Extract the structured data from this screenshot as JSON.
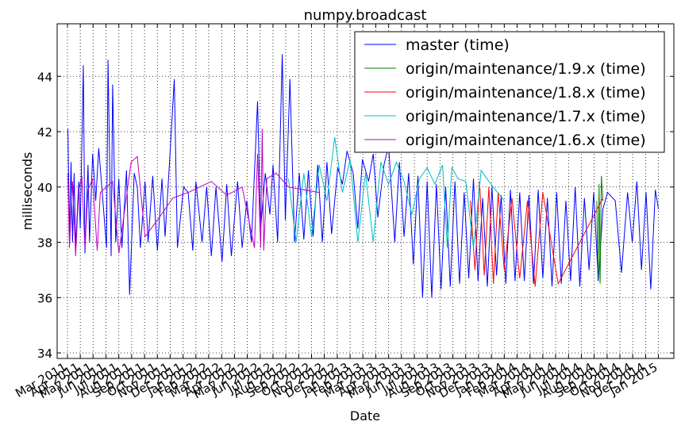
{
  "chart_data": {
    "type": "line",
    "title": "numpy.broadcast",
    "x_label": "Date",
    "y_label": "milliseconds",
    "xlim": [
      2011.1,
      2015.1
    ],
    "ylim": [
      33.8,
      45.9
    ],
    "grid": true,
    "legend": "upper right",
    "yticks": [
      34,
      36,
      38,
      40,
      42,
      44
    ],
    "xticks": [
      {
        "value": 2011.167,
        "label": "Mar 2011"
      },
      {
        "value": 2011.25,
        "label": "Apr 2011"
      },
      {
        "value": 2011.333,
        "label": "May 2011"
      },
      {
        "value": 2011.417,
        "label": "Jun 2011"
      },
      {
        "value": 2011.5,
        "label": "Jul 2011"
      },
      {
        "value": 2011.583,
        "label": "Aug 2011"
      },
      {
        "value": 2011.667,
        "label": "Sep 2011"
      },
      {
        "value": 2011.75,
        "label": "Oct 2011"
      },
      {
        "value": 2011.833,
        "label": "Nov 2011"
      },
      {
        "value": 2011.917,
        "label": "Dec 2011"
      },
      {
        "value": 2012.0,
        "label": "Jan 2012"
      },
      {
        "value": 2012.083,
        "label": "Feb 2012"
      },
      {
        "value": 2012.167,
        "label": "Mar 2012"
      },
      {
        "value": 2012.25,
        "label": "Apr 2012"
      },
      {
        "value": 2012.333,
        "label": "May 2012"
      },
      {
        "value": 2012.417,
        "label": "Jun 2012"
      },
      {
        "value": 2012.5,
        "label": "Jul 2012"
      },
      {
        "value": 2012.583,
        "label": "Aug 2012"
      },
      {
        "value": 2012.667,
        "label": "Sep 2012"
      },
      {
        "value": 2012.75,
        "label": "Oct 2012"
      },
      {
        "value": 2012.833,
        "label": "Nov 2012"
      },
      {
        "value": 2012.917,
        "label": "Dec 2012"
      },
      {
        "value": 2013.0,
        "label": "Jan 2013"
      },
      {
        "value": 2013.083,
        "label": "Feb 2013"
      },
      {
        "value": 2013.167,
        "label": "Mar 2013"
      },
      {
        "value": 2013.25,
        "label": "Apr 2013"
      },
      {
        "value": 2013.333,
        "label": "May 2013"
      },
      {
        "value": 2013.417,
        "label": "Jun 2013"
      },
      {
        "value": 2013.5,
        "label": "Jul 2013"
      },
      {
        "value": 2013.583,
        "label": "Aug 2013"
      },
      {
        "value": 2013.667,
        "label": "Sep 2013"
      },
      {
        "value": 2013.75,
        "label": "Oct 2013"
      },
      {
        "value": 2013.833,
        "label": "Nov 2013"
      },
      {
        "value": 2013.917,
        "label": "Dec 2013"
      },
      {
        "value": 2014.0,
        "label": "Jan 2014"
      },
      {
        "value": 2014.083,
        "label": "Feb 2014"
      },
      {
        "value": 2014.167,
        "label": "Mar 2014"
      },
      {
        "value": 2014.25,
        "label": "Apr 2014"
      },
      {
        "value": 2014.333,
        "label": "May 2014"
      },
      {
        "value": 2014.417,
        "label": "Jun 2014"
      },
      {
        "value": 2014.5,
        "label": "Jul 2014"
      },
      {
        "value": 2014.583,
        "label": "Aug 2014"
      },
      {
        "value": 2014.667,
        "label": "Sep 2014"
      },
      {
        "value": 2014.75,
        "label": "Oct 2014"
      },
      {
        "value": 2014.833,
        "label": "Nov 2014"
      },
      {
        "value": 2014.917,
        "label": "Dec 2014"
      },
      {
        "value": 2015.0,
        "label": "Jan 2015"
      }
    ],
    "series": [
      {
        "name": "master (time)",
        "color": "#0000ff",
        "x": [
          2011.17,
          2011.18,
          2011.19,
          2011.2,
          2011.21,
          2011.22,
          2011.24,
          2011.25,
          2011.27,
          2011.28,
          2011.3,
          2011.31,
          2011.33,
          2011.35,
          2011.37,
          2011.39,
          2011.42,
          2011.43,
          2011.45,
          2011.46,
          2011.48,
          2011.5,
          2011.52,
          2011.55,
          2011.57,
          2011.6,
          2011.62,
          2011.64,
          2011.67,
          2011.69,
          2011.72,
          2011.75,
          2011.78,
          2011.8,
          2011.83,
          2011.86,
          2011.88,
          2011.92,
          2011.95,
          2011.98,
          2012.0,
          2012.04,
          2012.07,
          2012.1,
          2012.13,
          2012.17,
          2012.2,
          2012.23,
          2012.27,
          2012.3,
          2012.33,
          2012.36,
          2012.4,
          2012.42,
          2012.45,
          2012.48,
          2012.5,
          2012.53,
          2012.56,
          2012.58,
          2012.61,
          2012.64,
          2012.67,
          2012.7,
          2012.73,
          2012.76,
          2012.79,
          2012.82,
          2012.85,
          2012.88,
          2012.92,
          2012.95,
          2012.98,
          2013.02,
          2013.05,
          2013.08,
          2013.12,
          2013.15,
          2013.18,
          2013.22,
          2013.25,
          2013.29,
          2013.32,
          2013.35,
          2013.38,
          2013.41,
          2013.44,
          2013.47,
          2013.5,
          2013.53,
          2013.56,
          2013.59,
          2013.62,
          2013.65,
          2013.68,
          2013.71,
          2013.74,
          2013.77,
          2013.8,
          2013.83,
          2013.86,
          2013.89,
          2013.92,
          2013.95,
          2013.98,
          2014.01,
          2014.04,
          2014.07,
          2014.1,
          2014.13,
          2014.16,
          2014.19,
          2014.22,
          2014.25,
          2014.28,
          2014.31,
          2014.34,
          2014.37,
          2014.4,
          2014.43,
          2014.46,
          2014.49,
          2014.52,
          2014.55,
          2014.58,
          2014.61,
          2014.64,
          2014.67,
          2014.72,
          2014.76,
          2014.8,
          2014.83,
          2014.86,
          2014.89,
          2014.92,
          2014.95,
          2014.98,
          2015.0
        ],
        "values": [
          42.1,
          38.2,
          40.9,
          38.0,
          40.5,
          37.8,
          40.2,
          38.5,
          44.4,
          37.6,
          40.8,
          38.0,
          41.2,
          39.5,
          41.4,
          40.0,
          37.8,
          44.6,
          37.5,
          43.7,
          38.0,
          40.3,
          37.8,
          40.6,
          36.1,
          40.5,
          40.0,
          37.8,
          40.2,
          38.0,
          40.4,
          37.7,
          40.3,
          38.2,
          41.0,
          43.9,
          37.8,
          40.0,
          39.8,
          37.7,
          40.2,
          38.0,
          40.0,
          37.5,
          40.0,
          37.3,
          40.1,
          37.5,
          40.2,
          37.8,
          39.5,
          38.0,
          43.1,
          38.5,
          40.5,
          39.0,
          40.8,
          38.0,
          44.8,
          38.8,
          43.9,
          38.0,
          40.5,
          38.1,
          40.6,
          38.2,
          40.8,
          38.0,
          40.9,
          38.3,
          40.7,
          40.1,
          41.3,
          40.5,
          38.5,
          41.0,
          40.2,
          41.2,
          38.9,
          40.8,
          41.5,
          38.0,
          40.9,
          38.2,
          40.5,
          37.2,
          40.4,
          36.0,
          40.2,
          36.0,
          40.1,
          36.3,
          40.0,
          36.4,
          40.2,
          36.5,
          39.8,
          36.7,
          40.3,
          36.6,
          39.6,
          36.4,
          40.0,
          36.8,
          39.7,
          36.5,
          39.9,
          36.6,
          39.8,
          36.6,
          39.7,
          36.5,
          39.9,
          36.7,
          39.6,
          36.4,
          39.8,
          36.5,
          39.5,
          36.6,
          40.0,
          36.4,
          39.6,
          37.0,
          39.8,
          36.6,
          39.2,
          39.8,
          39.5,
          36.9,
          39.8,
          38.0,
          40.2,
          37.0,
          39.8,
          36.3,
          39.9,
          39.2
        ]
      },
      {
        "name": "origin/maintenance/1.9.x (time)",
        "color": "#008000",
        "x": [
          2014.6,
          2014.608,
          2014.615,
          2014.622,
          2014.63,
          2014.64
        ],
        "values": [
          39.5,
          36.6,
          40.1,
          36.5,
          40.4,
          39.5
        ]
      },
      {
        "name": "origin/maintenance/1.8.x (time)",
        "color": "#ff0000",
        "x": [
          2013.78,
          2013.81,
          2013.84,
          2013.87,
          2013.9,
          2013.93,
          2013.96,
          2014.0,
          2014.05,
          2014.1,
          2014.15,
          2014.2,
          2014.25,
          2014.35,
          2014.64
        ],
        "values": [
          39.5,
          37.0,
          40.2,
          36.8,
          40.0,
          36.5,
          39.8,
          37.0,
          39.6,
          36.7,
          39.5,
          36.4,
          39.8,
          36.5,
          39.6
        ]
      },
      {
        "name": "origin/maintenance/1.7.x (time)",
        "color": "#00bfbf",
        "x": [
          2012.6,
          2012.65,
          2012.7,
          2012.75,
          2012.8,
          2012.85,
          2012.9,
          2012.95,
          2013.0,
          2013.05,
          2013.1,
          2013.15,
          2013.2,
          2013.25,
          2013.3,
          2013.35,
          2013.4,
          2013.45,
          2013.5,
          2013.55,
          2013.6,
          2013.63,
          2013.66,
          2013.7,
          2013.75,
          2013.8,
          2013.85,
          2013.9,
          2014.0
        ],
        "values": [
          40.3,
          38.0,
          40.5,
          38.2,
          40.8,
          39.5,
          41.8,
          39.8,
          41.0,
          38.0,
          40.5,
          38.0,
          40.9,
          40.1,
          40.9,
          40.2,
          39.0,
          40.3,
          40.7,
          40.1,
          40.8,
          37.8,
          40.7,
          40.3,
          40.2,
          37.8,
          40.6,
          40.2,
          39.5
        ]
      },
      {
        "name": "origin/maintenance/1.6.x (time)",
        "color": "#bf00bf",
        "x": [
          2011.17,
          2011.18,
          2011.2,
          2011.22,
          2011.24,
          2011.26,
          2011.28,
          2011.3,
          2011.33,
          2011.36,
          2011.38,
          2011.42,
          2011.46,
          2011.5,
          2011.58,
          2011.62,
          2011.67,
          2011.75,
          2011.85,
          2011.95,
          2012.1,
          2012.2,
          2012.3,
          2012.38,
          2012.4,
          2012.42,
          2012.43,
          2012.44,
          2012.46,
          2012.52,
          2012.6,
          2012.8
        ],
        "values": [
          40.5,
          37.8,
          40.2,
          37.5,
          39.9,
          40.4,
          37.8,
          39.9,
          40.3,
          37.7,
          39.8,
          40.0,
          40.2,
          37.6,
          40.9,
          41.1,
          38.2,
          38.8,
          39.6,
          39.8,
          40.2,
          39.7,
          40.0,
          37.8,
          41.2,
          37.8,
          42.1,
          37.7,
          40.3,
          40.5,
          40.0,
          39.8
        ]
      }
    ]
  }
}
